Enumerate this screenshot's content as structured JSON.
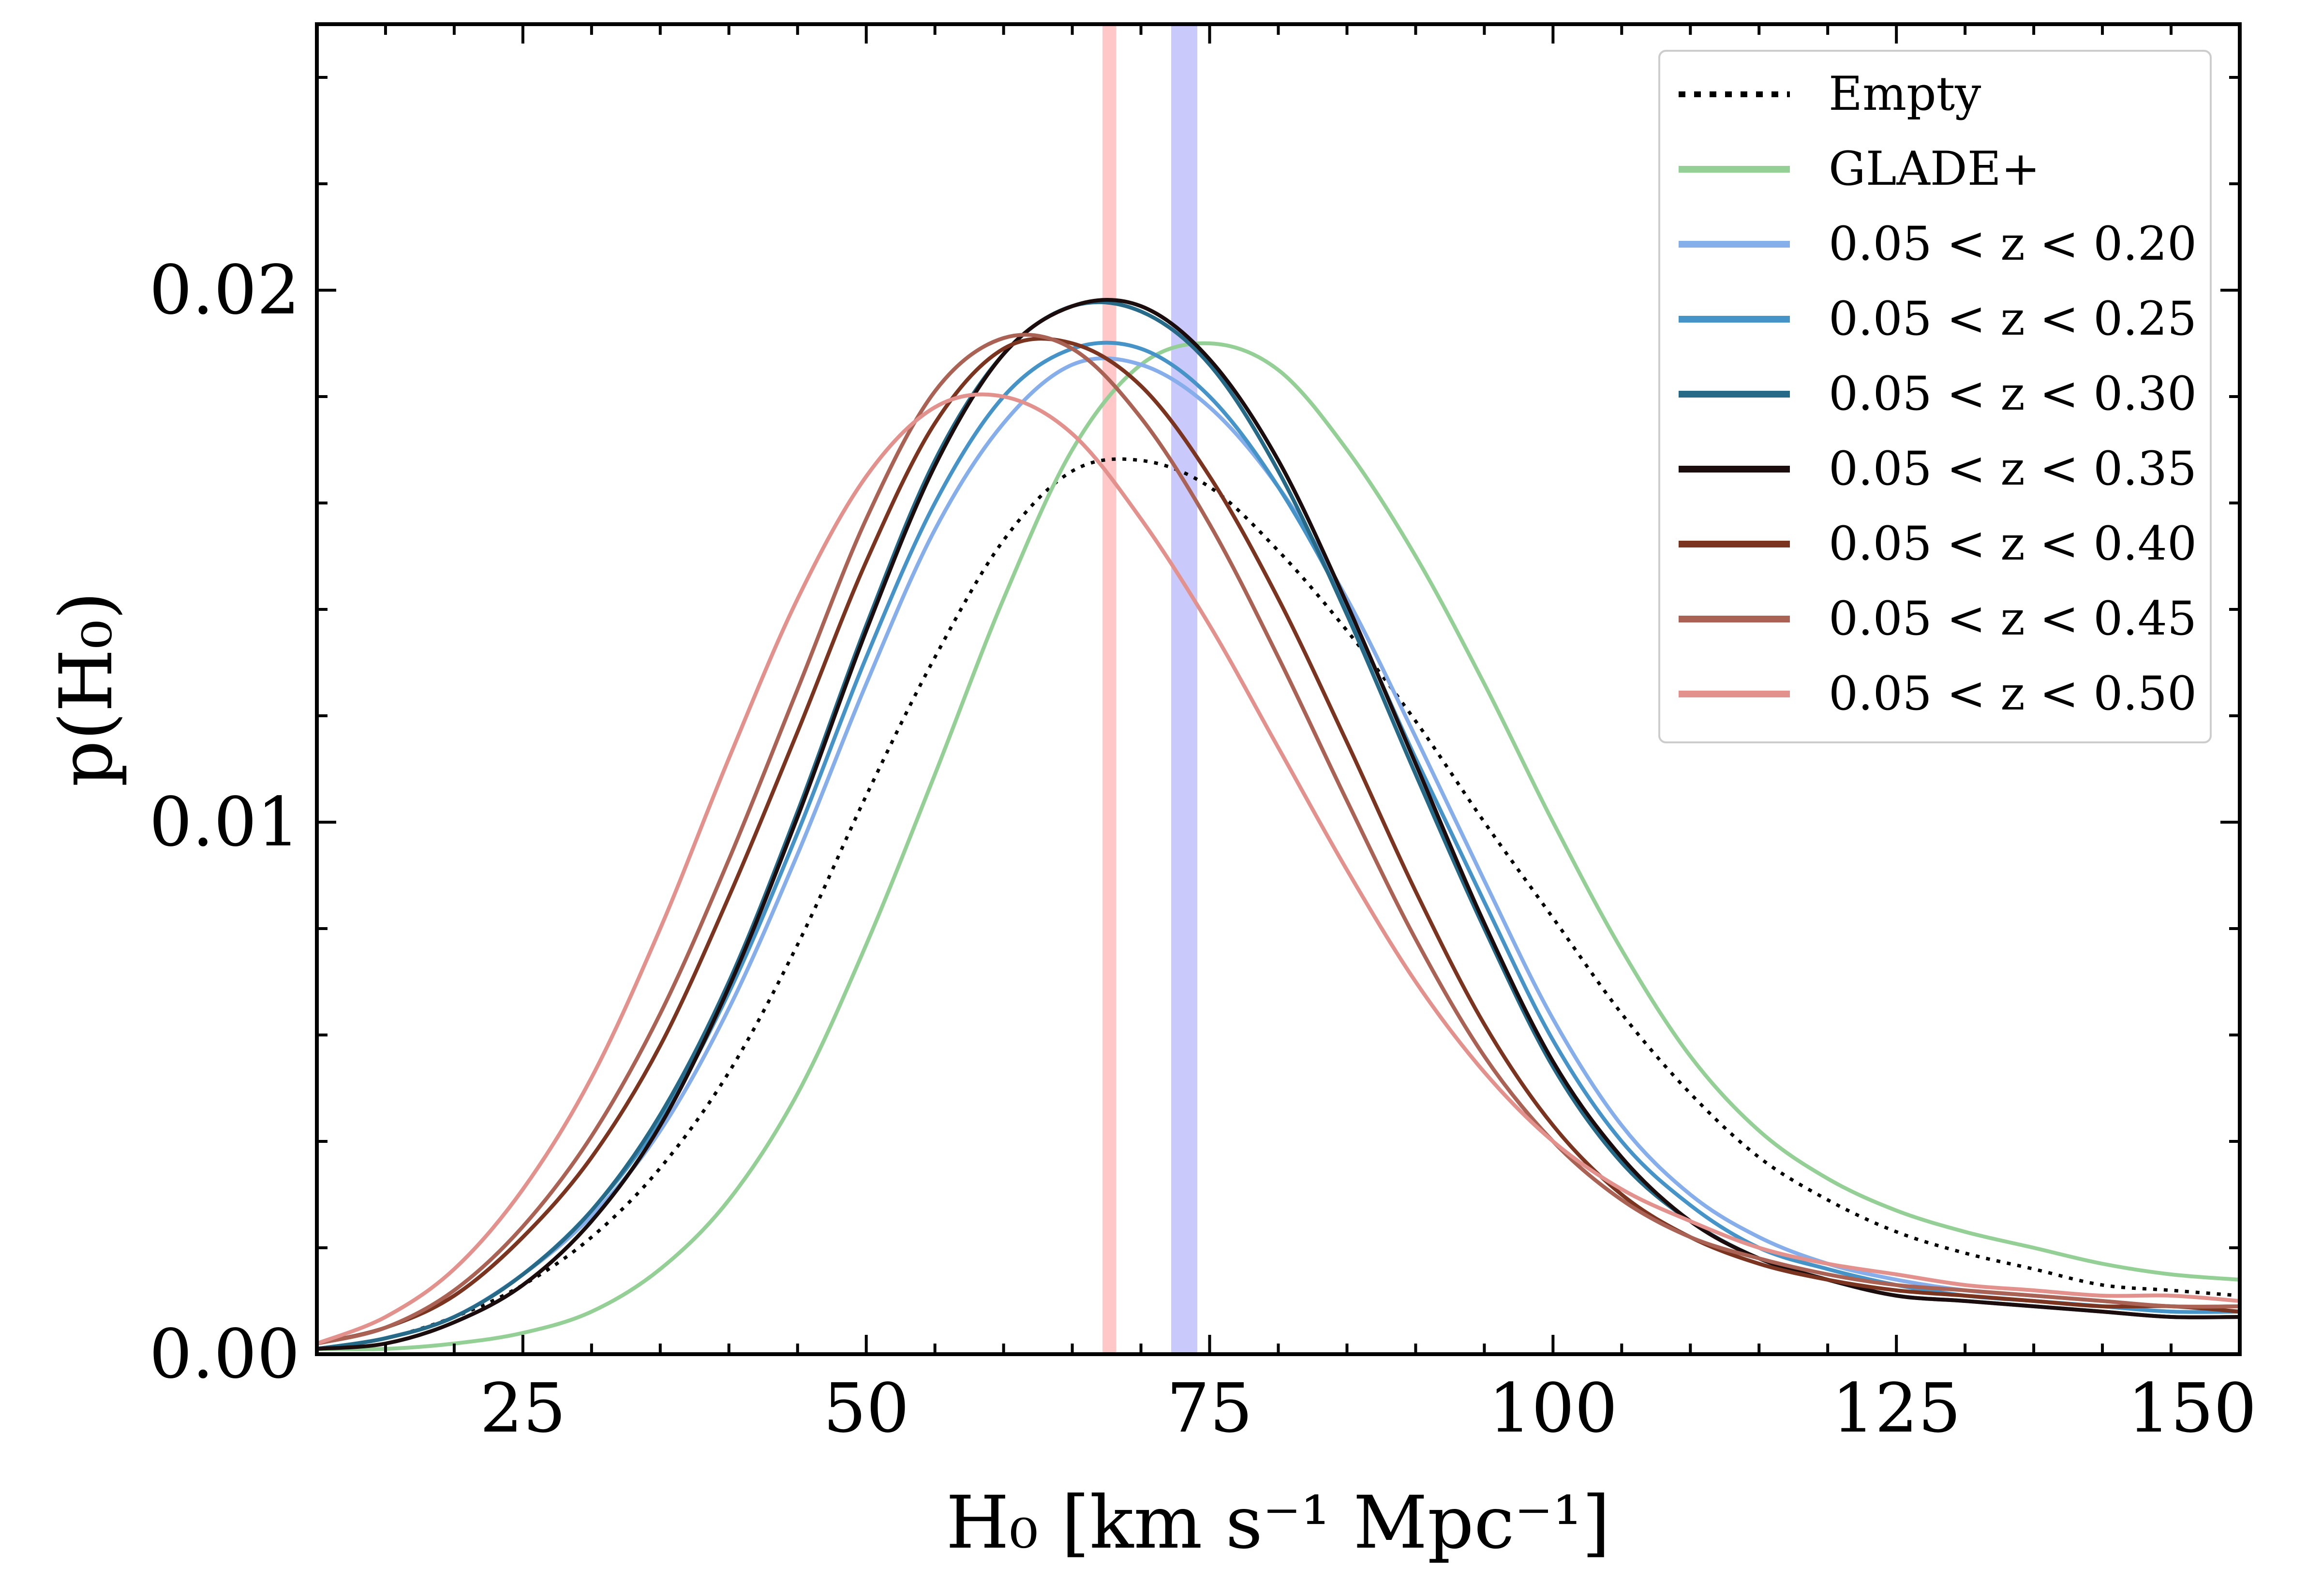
{
  "chart_data": {
    "type": "line",
    "title": "",
    "xlabel": "H₀ [km s⁻¹ Mpc⁻¹]",
    "ylabel": "p(H₀)",
    "xlim": [
      10,
      150
    ],
    "ylim": [
      0,
      0.025
    ],
    "xticks": [
      25,
      50,
      75,
      100,
      125,
      150
    ],
    "yticks": [
      0.0,
      0.01,
      0.02
    ],
    "ytick_labels": [
      "0.00",
      "0.01",
      "0.02"
    ],
    "grid": false,
    "legend_position": "top-right",
    "bands": [
      {
        "name": "planck-band",
        "xmin": 67.2,
        "xmax": 68.2,
        "color": "#ffc7c7"
      },
      {
        "name": "shoes-band",
        "xmin": 72.2,
        "xmax": 74.1,
        "color": "#c9c9fb"
      }
    ],
    "series": [
      {
        "name": "Empty",
        "color": "#000000",
        "dash": "dotted",
        "x": [
          10,
          15,
          20,
          25,
          30,
          35,
          40,
          45,
          50,
          55,
          60,
          65,
          70,
          75,
          80,
          85,
          90,
          95,
          100,
          105,
          110,
          115,
          120,
          125,
          130,
          135,
          140,
          145,
          150
        ],
        "y": [
          0.0001,
          0.0003,
          0.0007,
          0.0013,
          0.0022,
          0.0035,
          0.0053,
          0.0077,
          0.0105,
          0.0131,
          0.0153,
          0.0166,
          0.0168,
          0.0163,
          0.0151,
          0.0136,
          0.0119,
          0.01,
          0.0082,
          0.0064,
          0.0049,
          0.0037,
          0.0029,
          0.0023,
          0.0019,
          0.0016,
          0.0013,
          0.0012,
          0.0011
        ]
      },
      {
        "name": "GLADE+",
        "color": "#94d096",
        "dash": "solid",
        "x": [
          10,
          15,
          20,
          25,
          30,
          35,
          40,
          45,
          50,
          55,
          60,
          65,
          70,
          75,
          80,
          85,
          90,
          95,
          100,
          105,
          110,
          115,
          120,
          125,
          130,
          135,
          140,
          145,
          150
        ],
        "y": [
          0.0001,
          0.0001,
          0.0002,
          0.0004,
          0.0008,
          0.0016,
          0.0029,
          0.0049,
          0.0077,
          0.0109,
          0.0142,
          0.017,
          0.0186,
          0.019,
          0.0185,
          0.017,
          0.015,
          0.0126,
          0.01,
          0.0076,
          0.0056,
          0.0042,
          0.0033,
          0.0027,
          0.0023,
          0.002,
          0.0017,
          0.0015,
          0.0014
        ]
      },
      {
        "name": "0.05 < z < 0.20",
        "color": "#86aeea",
        "dash": "solid",
        "x": [
          10,
          15,
          20,
          25,
          30,
          35,
          40,
          45,
          50,
          55,
          60,
          65,
          70,
          75,
          80,
          85,
          90,
          95,
          100,
          105,
          110,
          115,
          120,
          125,
          130,
          135,
          140,
          145,
          150
        ],
        "y": [
          0.0001,
          0.0003,
          0.0007,
          0.0015,
          0.0026,
          0.0042,
          0.0065,
          0.0094,
          0.0126,
          0.0155,
          0.0175,
          0.0186,
          0.0186,
          0.0178,
          0.0163,
          0.0142,
          0.0116,
          0.0089,
          0.0063,
          0.0043,
          0.003,
          0.0022,
          0.0017,
          0.0014,
          0.0012,
          0.0011,
          0.001,
          0.0009,
          0.0009
        ]
      },
      {
        "name": "0.05 < z < 0.25",
        "color": "#4693c8",
        "dash": "solid",
        "x": [
          10,
          15,
          20,
          25,
          30,
          35,
          40,
          45,
          50,
          55,
          60,
          65,
          70,
          75,
          80,
          85,
          90,
          95,
          100,
          105,
          110,
          115,
          120,
          125,
          130,
          135,
          140,
          145,
          150
        ],
        "y": [
          0.0001,
          0.0003,
          0.0007,
          0.0015,
          0.0027,
          0.0044,
          0.0068,
          0.0098,
          0.0131,
          0.016,
          0.018,
          0.0189,
          0.0189,
          0.018,
          0.0163,
          0.014,
          0.0112,
          0.0085,
          0.0059,
          0.004,
          0.0028,
          0.002,
          0.0016,
          0.0013,
          0.0011,
          0.001,
          0.0009,
          0.0008,
          0.0008
        ]
      },
      {
        "name": "0.05 < z < 0.30",
        "color": "#266a87",
        "dash": "solid",
        "x": [
          10,
          15,
          20,
          25,
          30,
          35,
          40,
          45,
          50,
          55,
          60,
          65,
          70,
          75,
          80,
          85,
          90,
          95,
          100,
          105,
          110,
          115,
          120,
          125,
          130,
          135,
          140,
          145,
          150
        ],
        "y": [
          0.0001,
          0.0003,
          0.0007,
          0.0015,
          0.0027,
          0.0045,
          0.007,
          0.0102,
          0.0137,
          0.0168,
          0.0188,
          0.0197,
          0.0196,
          0.0186,
          0.0166,
          0.0139,
          0.0109,
          0.008,
          0.0054,
          0.0036,
          0.0025,
          0.0018,
          0.0014,
          0.0011,
          0.001,
          0.0009,
          0.0008,
          0.0007,
          0.0007
        ]
      },
      {
        "name": "0.05 < z < 0.35",
        "color": "#1b0d0d",
        "dash": "solid",
        "x": [
          10,
          15,
          20,
          25,
          30,
          35,
          40,
          45,
          50,
          55,
          60,
          65,
          70,
          75,
          80,
          85,
          90,
          95,
          100,
          105,
          110,
          115,
          120,
          125,
          130,
          135,
          140,
          145,
          150
        ],
        "y": [
          0.0001,
          0.0002,
          0.0006,
          0.0013,
          0.0025,
          0.0043,
          0.0069,
          0.0101,
          0.0136,
          0.0167,
          0.0188,
          0.0197,
          0.0197,
          0.0187,
          0.0168,
          0.0141,
          0.0111,
          0.0081,
          0.0055,
          0.0037,
          0.0025,
          0.0018,
          0.0014,
          0.0011,
          0.001,
          0.0009,
          0.0008,
          0.0007,
          0.0007
        ]
      },
      {
        "name": "0.05 < z < 0.40",
        "color": "#7a3420",
        "dash": "solid",
        "x": [
          10,
          15,
          20,
          25,
          30,
          35,
          40,
          45,
          50,
          55,
          60,
          65,
          70,
          75,
          80,
          85,
          90,
          95,
          100,
          105,
          110,
          115,
          120,
          125,
          130,
          135,
          140,
          145,
          150
        ],
        "y": [
          0.0002,
          0.0005,
          0.0011,
          0.0022,
          0.0037,
          0.0058,
          0.0086,
          0.0117,
          0.0149,
          0.0175,
          0.0189,
          0.019,
          0.0182,
          0.0165,
          0.0142,
          0.0115,
          0.0087,
          0.0062,
          0.0043,
          0.003,
          0.0022,
          0.0017,
          0.0014,
          0.0012,
          0.0011,
          0.001,
          0.0009,
          0.0009,
          0.0008
        ]
      },
      {
        "name": "0.05 < z < 0.45",
        "color": "#aa6255",
        "dash": "solid",
        "x": [
          10,
          15,
          20,
          25,
          30,
          35,
          40,
          45,
          50,
          55,
          60,
          65,
          70,
          75,
          80,
          85,
          90,
          95,
          100,
          105,
          110,
          115,
          120,
          125,
          130,
          135,
          140,
          145,
          150
        ],
        "y": [
          0.0002,
          0.0005,
          0.0012,
          0.0024,
          0.0041,
          0.0064,
          0.0093,
          0.0125,
          0.0157,
          0.0181,
          0.0191,
          0.0189,
          0.0176,
          0.0156,
          0.0131,
          0.0104,
          0.0078,
          0.0056,
          0.004,
          0.0029,
          0.0022,
          0.0018,
          0.0015,
          0.0013,
          0.0012,
          0.0011,
          0.001,
          0.0009,
          0.0009
        ]
      },
      {
        "name": "0.05 < z < 0.50",
        "color": "#e2918d",
        "dash": "solid",
        "x": [
          10,
          15,
          20,
          25,
          30,
          35,
          40,
          45,
          50,
          55,
          60,
          65,
          70,
          75,
          80,
          85,
          90,
          95,
          100,
          105,
          110,
          115,
          120,
          125,
          130,
          135,
          140,
          145,
          150
        ],
        "y": [
          0.0002,
          0.0007,
          0.0016,
          0.0031,
          0.0052,
          0.008,
          0.0112,
          0.0142,
          0.0165,
          0.0178,
          0.018,
          0.0173,
          0.0157,
          0.0137,
          0.0114,
          0.0091,
          0.007,
          0.0053,
          0.004,
          0.0031,
          0.0025,
          0.002,
          0.0017,
          0.0015,
          0.0013,
          0.0012,
          0.0011,
          0.0011,
          0.001
        ]
      }
    ]
  }
}
